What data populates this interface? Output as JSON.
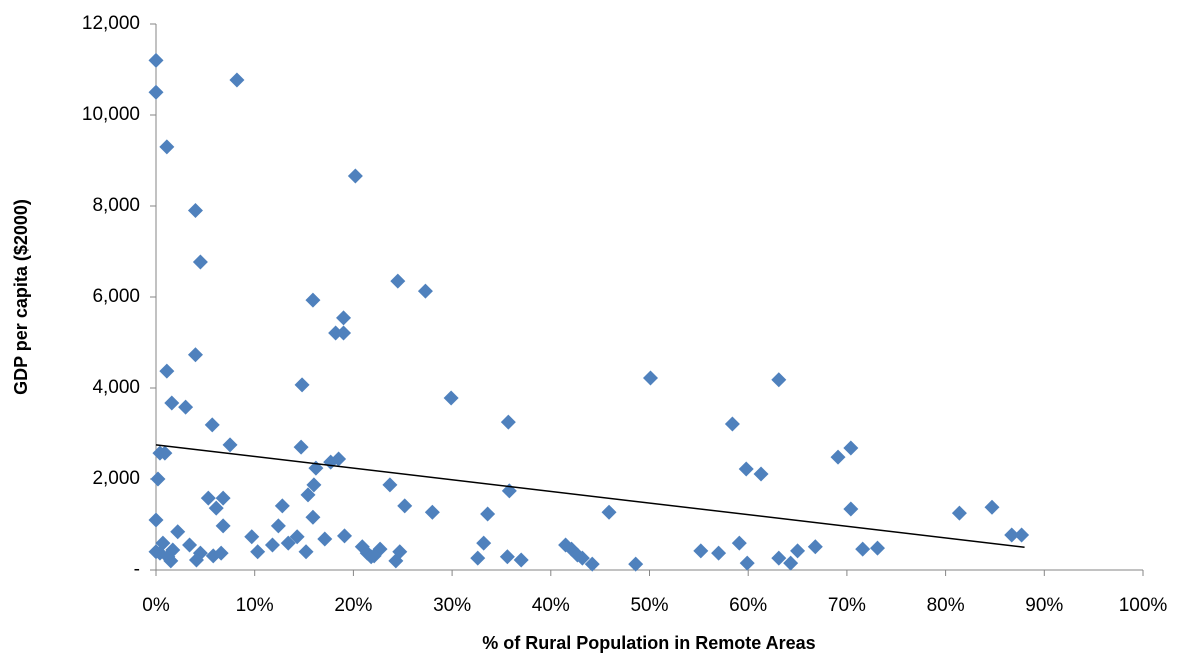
{
  "chart_data": {
    "type": "scatter",
    "xlabel": "% of Rural Population in Remote Areas",
    "ylabel": "GDP per capita ($2000)",
    "color": "#4f81bd",
    "x": [
      0,
      0,
      8.2,
      1.1,
      4.0,
      4.5,
      20.2,
      15.9,
      19.0,
      18.2,
      19.0,
      24.5,
      27.3,
      4.0,
      1.1,
      14.8,
      1.6,
      3.0,
      29.9,
      5.7,
      35.7,
      50.1,
      63.1,
      58.4,
      7.5,
      0.4,
      0.9,
      14.7,
      0.2,
      16.2,
      17.7,
      18.5,
      59.8,
      61.3,
      69.1,
      70.4,
      16.0,
      15.4,
      23.7,
      35.8,
      5.3,
      6.8,
      6.1,
      25.2,
      12.8,
      28.0,
      33.6,
      45.9,
      15.9,
      6.8,
      12.4,
      70.4,
      81.4,
      84.7,
      0,
      2.2,
      9.7,
      19.1,
      14.3,
      17.1,
      13.4,
      33.2,
      41.5,
      86.7,
      87.7,
      0.7,
      3.4,
      11.8,
      20.9,
      59.1,
      0.4,
      1.2,
      1.7,
      0,
      4.5,
      5.8,
      6.6,
      10.3,
      15.2,
      21.4,
      22.7,
      22.1,
      24.7,
      42.1,
      42.7,
      55.2,
      57.0,
      65.0,
      66.8,
      71.6,
      73.1,
      1.5,
      4.1,
      21.8,
      24.3,
      32.6,
      35.6,
      37.0,
      43.2,
      44.2,
      48.6,
      59.9,
      63.1,
      64.3
    ],
    "values": [
      11200,
      10500,
      10770,
      9300,
      7900,
      6770,
      8660,
      5930,
      5540,
      5210,
      5210,
      6350,
      6130,
      4730,
      4370,
      4070,
      3670,
      3580,
      3780,
      3190,
      3250,
      4220,
      4180,
      3210,
      2750,
      2570,
      2570,
      2700,
      2000,
      2240,
      2370,
      2440,
      2220,
      2110,
      2480,
      2680,
      1870,
      1650,
      1870,
      1740,
      1580,
      1580,
      1360,
      1410,
      1410,
      1270,
      1230,
      1270,
      1160,
      970,
      970,
      1340,
      1250,
      1380,
      1100,
      840,
      730,
      750,
      730,
      680,
      590,
      590,
      550,
      770,
      770,
      590,
      550,
      550,
      510,
      590,
      370,
      290,
      440,
      400,
      370,
      310,
      370,
      400,
      400,
      370,
      460,
      310,
      400,
      460,
      330,
      420,
      370,
      420,
      510,
      460,
      480,
      200,
      220,
      290,
      200,
      260,
      290,
      220,
      260,
      130,
      130,
      150,
      260,
      150
    ],
    "trendline": {
      "x": [
        0,
        88
      ],
      "values": [
        2750,
        500
      ],
      "color": "#000000"
    },
    "xlim": [
      0,
      100
    ],
    "ylim": [
      0,
      12000
    ],
    "xticks": [
      {
        "value": 0,
        "label": "0%"
      },
      {
        "value": 10,
        "label": "10%"
      },
      {
        "value": 20,
        "label": "20%"
      },
      {
        "value": 30,
        "label": "30%"
      },
      {
        "value": 40,
        "label": "40%"
      },
      {
        "value": 50,
        "label": "50%"
      },
      {
        "value": 60,
        "label": "60%"
      },
      {
        "value": 70,
        "label": "70%"
      },
      {
        "value": 80,
        "label": "80%"
      },
      {
        "value": 90,
        "label": "90%"
      },
      {
        "value": 100,
        "label": "100%"
      }
    ],
    "yticks": [
      {
        "value": 0,
        "label": "-"
      },
      {
        "value": 2000,
        "label": "2,000"
      },
      {
        "value": 4000,
        "label": "4,000"
      },
      {
        "value": 6000,
        "label": "6,000"
      },
      {
        "value": 8000,
        "label": "8,000"
      },
      {
        "value": 10000,
        "label": "10,000"
      },
      {
        "value": 12000,
        "label": "12,000"
      }
    ],
    "grid": false
  }
}
